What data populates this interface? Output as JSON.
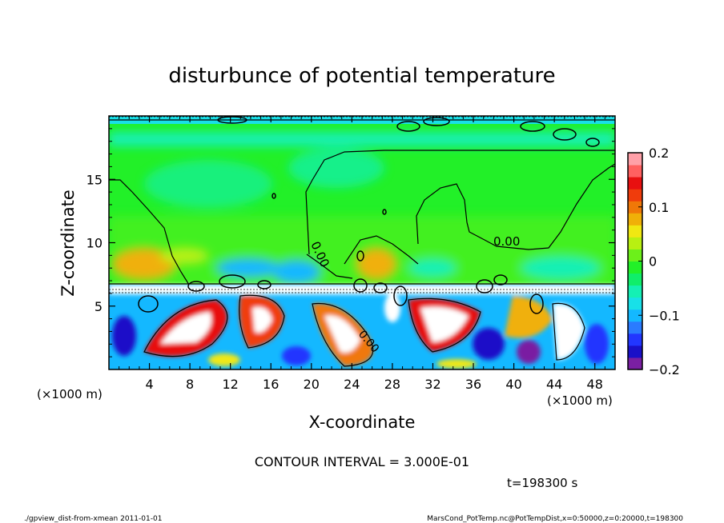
{
  "chart_data": {
    "type": "heatmap",
    "title": "disturbunce of potential temperature",
    "xlabel": "X-coordinate",
    "ylabel": "Z-coordinate",
    "x_unit_label": "(×1000 m)",
    "x_unit_label_right": "(×1000 m)",
    "xlim": [
      0,
      50
    ],
    "ylim": [
      0,
      20
    ],
    "x_ticks": [
      4,
      8,
      12,
      16,
      20,
      24,
      28,
      32,
      36,
      40,
      44,
      48
    ],
    "y_ticks": [
      5,
      10,
      15
    ],
    "colorbar": {
      "range": [
        -0.2,
        0.2
      ],
      "tick_values": [
        0.2,
        0.1,
        0,
        -0.1,
        -0.2
      ],
      "tick_labels": [
        "0.2",
        "0.1",
        "0",
        "−0.1",
        "−0.2"
      ],
      "colors": [
        "#7a1fa2",
        "#1a10c8",
        "#2236ff",
        "#2a7bff",
        "#14b8ff",
        "#18e0e8",
        "#14f0b4",
        "#10ee6a",
        "#22f028",
        "#6cf01a",
        "#b8f012",
        "#f0e812",
        "#f0b008",
        "#f07808",
        "#f03c0c",
        "#e81010",
        "#ff6060",
        "#ffa0a8"
      ]
    },
    "contour_interval_text": "CONTOUR INTERVAL = 3.000E-01",
    "contour_labels": [
      "0.00",
      "0.00",
      "0.00"
    ],
    "time_label": "t=198300 s"
  },
  "footer": {
    "left": "./gpview_dist-from-xmean  2011-01-01",
    "right": "MarsCond_PotTemp.nc@PotTempDist,x=0:50000,z=0:20000,t=198300"
  }
}
